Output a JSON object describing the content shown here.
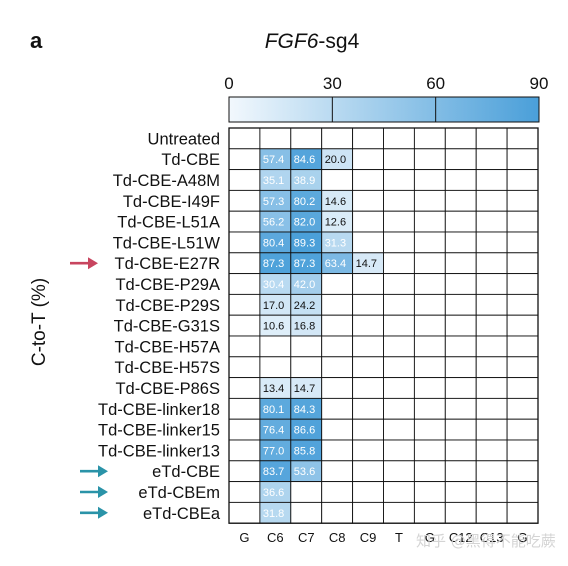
{
  "panel_label": "a",
  "title_italic": "FGF6",
  "title_rest": "-sg4",
  "ylabel": "C-to-T (%)",
  "watermark": "知乎 @黑得不能吃蕨",
  "colors": {
    "scale_low": "#f2f8fd",
    "scale_high": "#4a9fd9",
    "arrow_red": "#c8455f",
    "arrow_teal": "#2a93a8",
    "grid": "#111111"
  },
  "chart_data": {
    "type": "heatmap",
    "colorbar": {
      "min": 0,
      "max": 90,
      "ticks": [
        0,
        30,
        60,
        90
      ]
    },
    "columns": [
      "G",
      "C6",
      "C7",
      "C8",
      "C9",
      "T",
      "G",
      "C12",
      "C13",
      "G"
    ],
    "rows": [
      {
        "label": "Untreated",
        "marker": "",
        "values": [
          null,
          null,
          null,
          null,
          null,
          null,
          null,
          null,
          null,
          null
        ]
      },
      {
        "label": "Td-CBE",
        "marker": "",
        "values": [
          null,
          57.4,
          84.6,
          20.0,
          null,
          null,
          null,
          null,
          null,
          null
        ]
      },
      {
        "label": "Td-CBE-A48M",
        "marker": "",
        "values": [
          null,
          35.1,
          38.9,
          null,
          null,
          null,
          null,
          null,
          null,
          null
        ]
      },
      {
        "label": "Td-CBE-I49F",
        "marker": "",
        "values": [
          null,
          57.3,
          80.2,
          14.6,
          null,
          null,
          null,
          null,
          null,
          null
        ]
      },
      {
        "label": "Td-CBE-L51A",
        "marker": "",
        "values": [
          null,
          56.2,
          82.0,
          12.6,
          null,
          null,
          null,
          null,
          null,
          null
        ]
      },
      {
        "label": "Td-CBE-L51W",
        "marker": "",
        "values": [
          null,
          80.4,
          89.3,
          31.3,
          null,
          null,
          null,
          null,
          null,
          null
        ]
      },
      {
        "label": "Td-CBE-E27R",
        "marker": "red-arrow",
        "values": [
          null,
          87.3,
          87.3,
          63.4,
          14.7,
          null,
          null,
          null,
          null,
          null
        ]
      },
      {
        "label": "Td-CBE-P29A",
        "marker": "",
        "values": [
          null,
          30.4,
          42.0,
          null,
          null,
          null,
          null,
          null,
          null,
          null
        ]
      },
      {
        "label": "Td-CBE-P29S",
        "marker": "",
        "values": [
          null,
          17.0,
          24.2,
          null,
          null,
          null,
          null,
          null,
          null,
          null
        ]
      },
      {
        "label": "Td-CBE-G31S",
        "marker": "",
        "values": [
          null,
          10.6,
          16.8,
          null,
          null,
          null,
          null,
          null,
          null,
          null
        ]
      },
      {
        "label": "Td-CBE-H57A",
        "marker": "",
        "values": [
          null,
          null,
          null,
          null,
          null,
          null,
          null,
          null,
          null,
          null
        ]
      },
      {
        "label": "Td-CBE-H57S",
        "marker": "",
        "values": [
          null,
          null,
          null,
          null,
          null,
          null,
          null,
          null,
          null,
          null
        ]
      },
      {
        "label": "Td-CBE-P86S",
        "marker": "",
        "values": [
          null,
          13.4,
          14.7,
          null,
          null,
          null,
          null,
          null,
          null,
          null
        ]
      },
      {
        "label": "Td-CBE-linker18",
        "marker": "",
        "values": [
          null,
          80.1,
          84.3,
          null,
          null,
          null,
          null,
          null,
          null,
          null
        ]
      },
      {
        "label": "Td-CBE-linker15",
        "marker": "",
        "values": [
          null,
          76.4,
          86.6,
          null,
          null,
          null,
          null,
          null,
          null,
          null
        ]
      },
      {
        "label": "Td-CBE-linker13",
        "marker": "",
        "values": [
          null,
          77.0,
          85.8,
          null,
          null,
          null,
          null,
          null,
          null,
          null
        ]
      },
      {
        "label": "eTd-CBE",
        "marker": "teal-arrow",
        "values": [
          null,
          83.7,
          53.6,
          null,
          null,
          null,
          null,
          null,
          null,
          null
        ]
      },
      {
        "label": "eTd-CBEm",
        "marker": "teal-arrow",
        "values": [
          null,
          36.6,
          null,
          null,
          null,
          null,
          null,
          null,
          null,
          null
        ]
      },
      {
        "label": "eTd-CBEa",
        "marker": "teal-arrow",
        "values": [
          null,
          31.8,
          null,
          null,
          null,
          null,
          null,
          null,
          null,
          null
        ]
      }
    ]
  }
}
